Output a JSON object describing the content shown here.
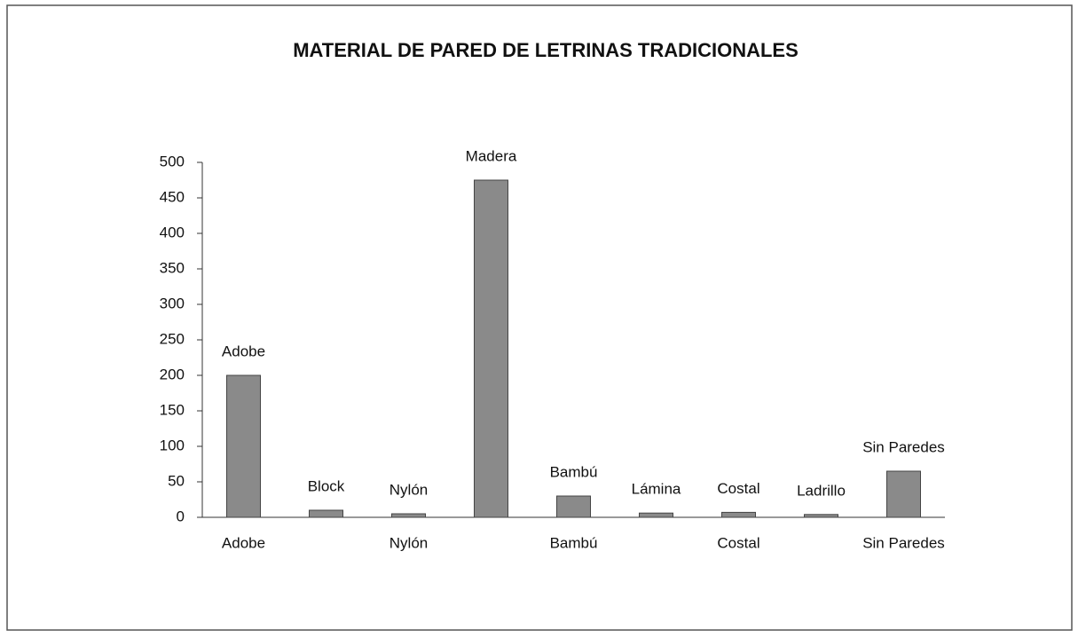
{
  "chart_data": {
    "type": "bar",
    "title": "MATERIAL DE PARED DE LETRINAS TRADICIONALES",
    "categories": [
      "Adobe",
      null,
      "Nylón",
      null,
      "Bambú",
      null,
      "Costal",
      null,
      "Sin Paredes"
    ],
    "values": [
      200,
      10,
      5,
      475,
      30,
      6,
      7,
      4,
      65
    ],
    "value_labels": [
      "Adobe",
      "Block",
      "Nylón",
      "Madera",
      "Bambú",
      "Lámina",
      "Costal",
      "Ladrillo",
      "Sin Paredes"
    ],
    "color": "#8a8a8a",
    "ylim": [
      0,
      500
    ],
    "yticks": [
      0,
      50,
      100,
      150,
      200,
      250,
      300,
      350,
      400,
      450,
      500
    ],
    "grid": false
  }
}
